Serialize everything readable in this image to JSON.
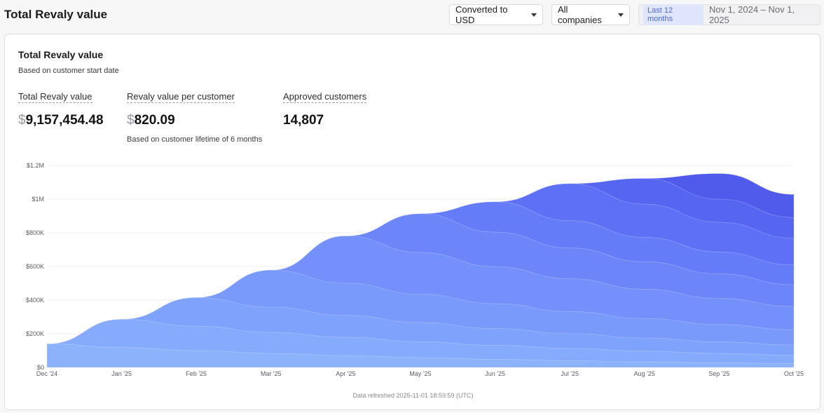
{
  "header": {
    "title": "Total Revaly value",
    "currency_select": "Converted to USD",
    "company_select": "All companies",
    "range_badge": "Last 12 months",
    "range_dates": "Nov 1, 2024 – Nov 1, 2025"
  },
  "card": {
    "title": "Total Revaly value",
    "subtitle": "Based on customer start date",
    "metrics": {
      "total": {
        "label": "Total Revaly value",
        "currency": "$",
        "value": "9,157,454.48"
      },
      "per_customer": {
        "label": "Revaly value per customer",
        "currency": "$",
        "value": "820.09",
        "note": "Based on customer lifetime of 6 months"
      },
      "approved": {
        "label": "Approved customers",
        "value": "14,807"
      }
    },
    "refresh_note": "Data refreshed 2025-11-01 18:59:59 (UTC)"
  },
  "colors": {
    "cohorts": [
      "#8cb2fc",
      "#86aafc",
      "#7fa2fc",
      "#7999fb",
      "#7390fb",
      "#6c86fa",
      "#657cf9",
      "#5e71f6",
      "#5766f1",
      "#505bec",
      "#4650e6",
      "#3c45df"
    ],
    "grid": "#eeeef1",
    "axis_text": "#5c5c64"
  },
  "chart_data": {
    "type": "area",
    "stacked": true,
    "x": [
      "Dec '24",
      "Jan '25",
      "Feb '25",
      "Mar '25",
      "Apr '25",
      "May '25",
      "Jun '25",
      "Jul '25",
      "Aug '25",
      "Sep '25",
      "Oct '25"
    ],
    "yticks": [
      "$0",
      "$200K",
      "$400K",
      "$600K",
      "$800K",
      "$1M",
      "$1.2M"
    ],
    "ylim": [
      0,
      1200000
    ],
    "series": [
      {
        "values": [
          140000,
          118000,
          100000,
          83000,
          70000,
          58000,
          48000,
          40000,
          33000,
          27000,
          23000
        ]
      },
      {
        "values": [
          0,
          168000,
          145000,
          125000,
          109000,
          95000,
          83000,
          73000,
          64000,
          56000,
          49000
        ]
      },
      {
        "values": [
          0,
          0,
          170000,
          150000,
          130000,
          114000,
          100000,
          88000,
          78000,
          69000,
          61000
        ]
      },
      {
        "values": [
          0,
          0,
          0,
          220000,
          192000,
          168000,
          148000,
          131000,
          116000,
          103000,
          91000
        ]
      },
      {
        "values": [
          0,
          0,
          0,
          0,
          280000,
          248000,
          220000,
          195000,
          174000,
          155000,
          138000
        ]
      },
      {
        "values": [
          0,
          0,
          0,
          0,
          0,
          230000,
          205000,
          183000,
          163000,
          146000,
          130000
        ]
      },
      {
        "values": [
          0,
          0,
          0,
          0,
          0,
          0,
          180000,
          162000,
          145000,
          130000,
          117000
        ]
      },
      {
        "values": [
          0,
          0,
          0,
          0,
          0,
          0,
          0,
          220000,
          197000,
          177000,
          159000
        ]
      },
      {
        "values": [
          0,
          0,
          0,
          0,
          0,
          0,
          0,
          0,
          153000,
          137000,
          123000
        ]
      },
      {
        "values": [
          0,
          0,
          0,
          0,
          0,
          0,
          0,
          0,
          0,
          152000,
          137000
        ]
      },
      {
        "values": [
          0,
          0,
          0,
          0,
          0,
          0,
          0,
          0,
          0,
          0,
          0
        ]
      }
    ]
  }
}
